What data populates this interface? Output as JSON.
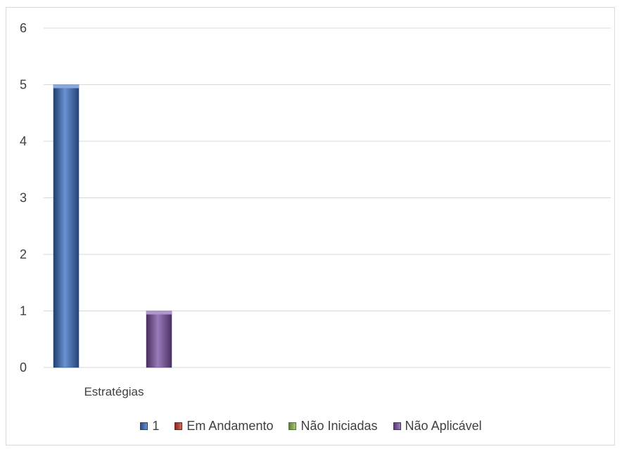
{
  "chart_data": {
    "type": "bar",
    "categories": [
      "Estratégias"
    ],
    "series": [
      {
        "name": "1",
        "values": [
          5
        ],
        "color": "#3a6fc4"
      },
      {
        "name": "Em Andamento",
        "values": [
          0
        ],
        "color": "#c0392b"
      },
      {
        "name": "Não Iniciadas",
        "values": [
          0
        ],
        "color": "#8db84a"
      },
      {
        "name": "Não Aplicável",
        "values": [
          1
        ],
        "color": "#7b52a6"
      }
    ],
    "yticks": [
      "0",
      "1",
      "2",
      "3",
      "4",
      "5",
      "6"
    ],
    "ylim": [
      0,
      6
    ],
    "grid": true,
    "legend_position": "bottom"
  }
}
